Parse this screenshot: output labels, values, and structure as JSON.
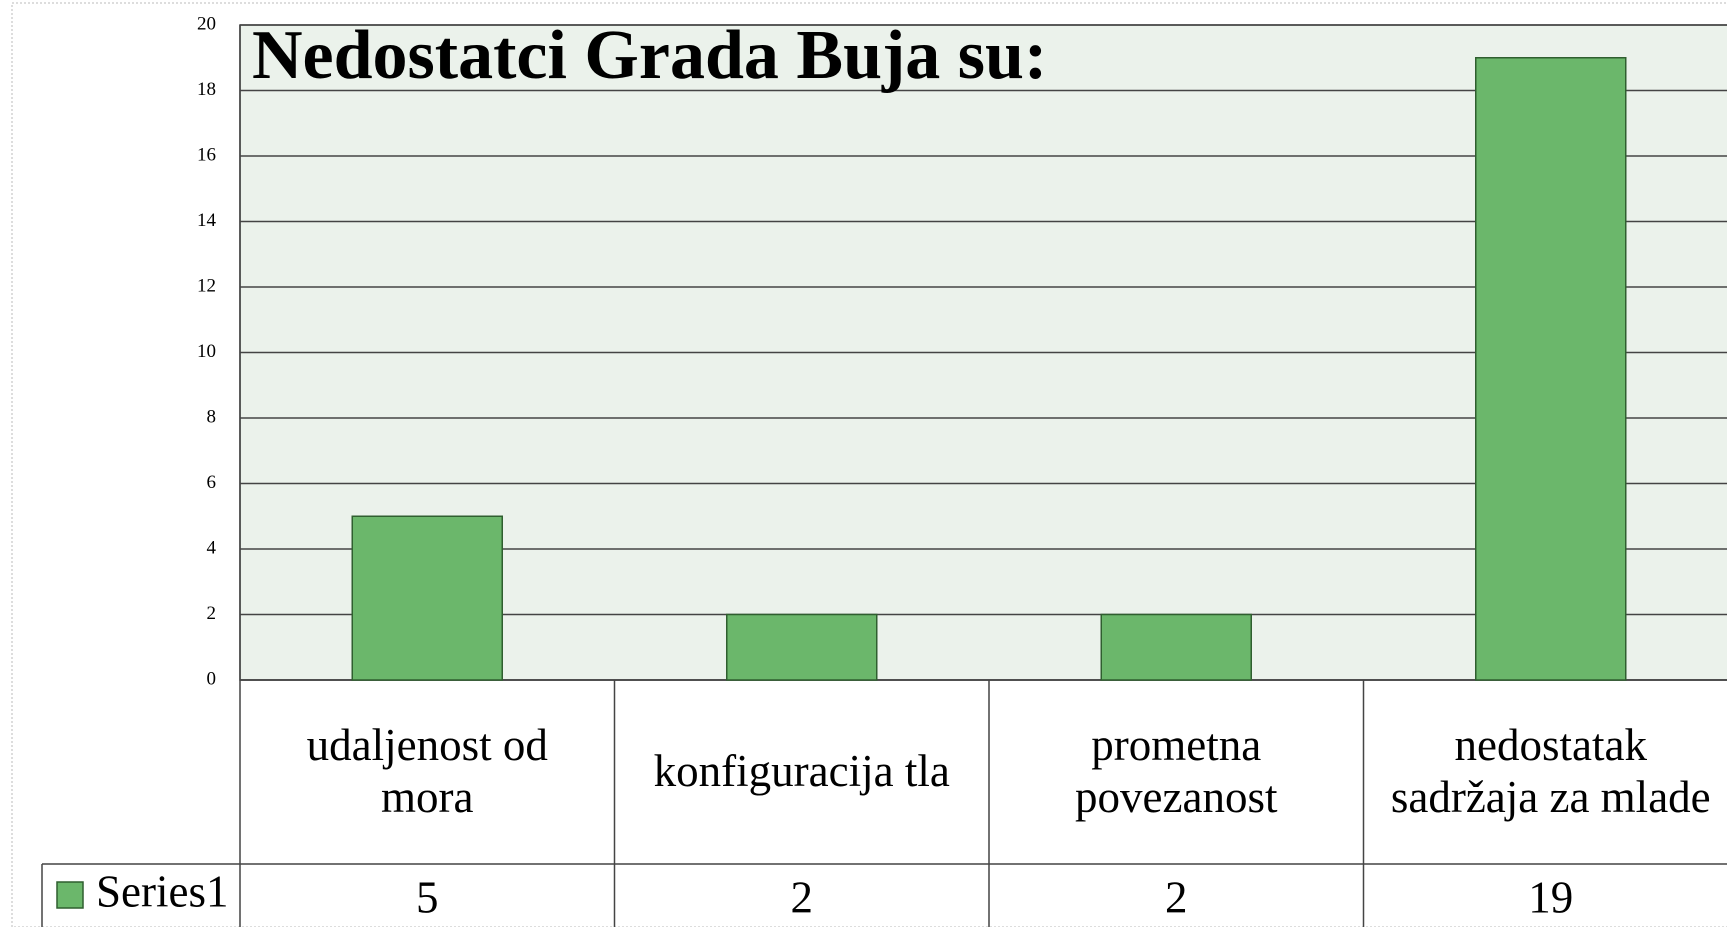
{
  "chart_data": {
    "type": "bar",
    "title": "Nedostatci Grada Buja su:",
    "categories": [
      "udaljenost od mora",
      "konfiguracija tla",
      "prometna povezanost",
      "nedostatak sadržaja za mlade"
    ],
    "series": [
      {
        "name": "Series1",
        "color": "#6bb76b",
        "values": [
          5,
          2,
          2,
          19
        ]
      }
    ],
    "ylim": [
      0,
      20
    ],
    "yticks": [
      0,
      2,
      4,
      6,
      8,
      10,
      12,
      14,
      16,
      18,
      20
    ],
    "grid": true
  }
}
